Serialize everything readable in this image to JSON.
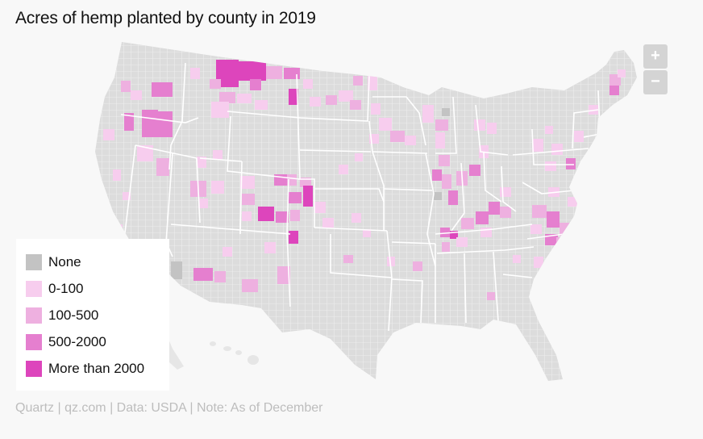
{
  "title": "Acres of hemp planted by county in 2019",
  "controls": {
    "zoom_in_label": "+",
    "zoom_out_label": "−"
  },
  "legend": [
    {
      "label": "None",
      "color": "#c3c3c3"
    },
    {
      "label": "0-100",
      "color": "#f7cdee"
    },
    {
      "label": "100-500",
      "color": "#eeb0e0"
    },
    {
      "label": "500-2000",
      "color": "#e57fcf"
    },
    {
      "label": "More than 2000",
      "color": "#dd45bc"
    }
  ],
  "colors": {
    "background": "#f8f8f8",
    "county_fill": "#dcdcdc",
    "county_border": "#f4f4f4",
    "state_border": "#ffffff",
    "hawaii_fill": "#e6e6e6"
  },
  "source": "Quartz | qz.com | Data: USDA | Note: As of December"
}
